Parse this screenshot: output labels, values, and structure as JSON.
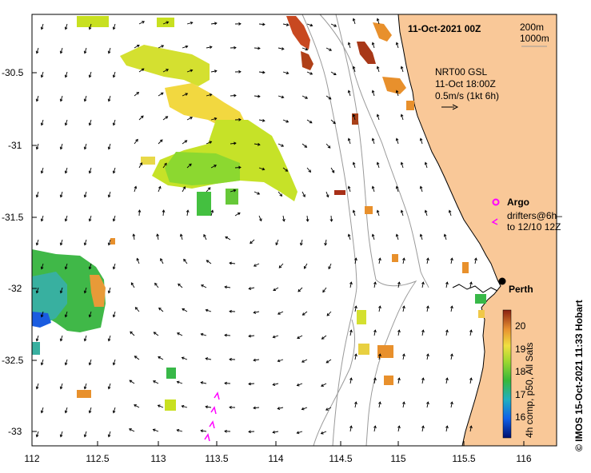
{
  "title": "11-Oct-2021 00Z",
  "depth_legend": [
    "200m",
    "1000m"
  ],
  "current_info": {
    "line1": "NRT00 GSL",
    "line2": "11-Oct 18:00Z",
    "line3": "0.5m/s (1kt 6h)"
  },
  "legend": {
    "argo_label": "Argo",
    "drifters_line1": "drifters@6h–",
    "drifters_line2": "to 12/10 12Z"
  },
  "city": "Perth",
  "colorbar": {
    "ticks": [
      "20",
      "19",
      "18",
      "17",
      "16"
    ],
    "label": "4h comp, p50, All Sats"
  },
  "credit": "© IMOS 15-Oct-2021 11:33 Hobart",
  "axes": {
    "x_ticks": [
      "112",
      "112.5",
      "113",
      "113.5",
      "114",
      "114.5",
      "115",
      "115.5",
      "116"
    ],
    "y_ticks": [
      "-30.5",
      "-31",
      "-31.5",
      "-32",
      "-32.5",
      "-33"
    ]
  },
  "colors": {
    "land": "#f9c898",
    "coast": "#000000",
    "isobath": "#9a9a9a",
    "argo": "#ff00ff"
  }
}
